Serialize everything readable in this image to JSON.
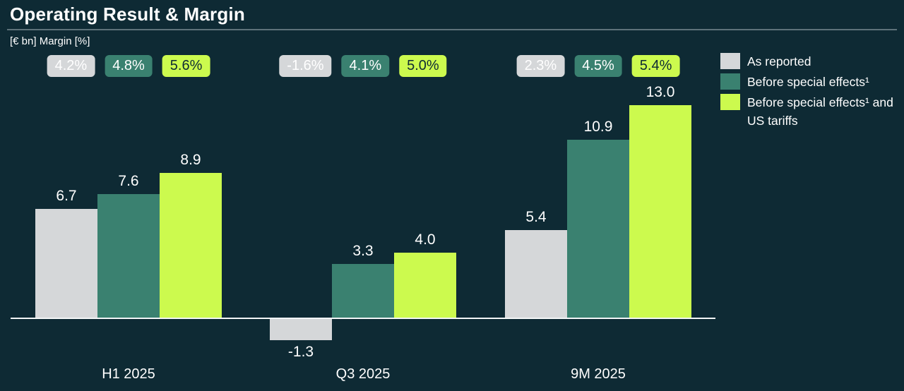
{
  "title": "Operating Result & Margin",
  "subtitle": "[€ bn] Margin [%]",
  "colors": {
    "background": "#0e2a34",
    "title_text": "#ffffff",
    "title_rule": "#5e727a",
    "axis_line": "#f2f5f6",
    "as_reported": "#d5d7d9",
    "before_special_effects": "#3a8170",
    "before_special_effects_and_us_tariffs": "#ccfa4e",
    "badge_text_light": "#ffffff",
    "badge_text_dark": "#0e2a34",
    "value_label_text": "#ffffff"
  },
  "legend": [
    {
      "label": "As reported",
      "color": "#d5d7d9"
    },
    {
      "label": "Before special effects¹",
      "color": "#3a8170"
    },
    {
      "label": "Before special effects¹ and US tariffs",
      "color": "#ccfa4e"
    }
  ],
  "chart_data": {
    "type": "bar",
    "title": "Operating Result & Margin",
    "unit": "€ bn",
    "categories": [
      "H1 2025",
      "Q3 2025",
      "9M 2025"
    ],
    "series": [
      {
        "name": "As reported",
        "color": "#d5d7d9",
        "badge_text_color": "#ffffff",
        "values": [
          6.7,
          -1.3,
          5.4
        ],
        "value_labels": [
          "6.7",
          "-1.3",
          "5.4"
        ],
        "margins": [
          "4.2%",
          "-1.6%",
          "2.3%"
        ]
      },
      {
        "name": "Before special effects¹",
        "color": "#3a8170",
        "badge_text_color": "#ffffff",
        "values": [
          7.6,
          3.3,
          10.9
        ],
        "value_labels": [
          "7.6",
          "3.3",
          "10.9"
        ],
        "margins": [
          "4.8%",
          "4.1%",
          "4.5%"
        ]
      },
      {
        "name": "Before special effects¹ and US tariffs",
        "color": "#ccfa4e",
        "badge_text_color": "#0e2a34",
        "values": [
          8.9,
          4.0,
          13.0
        ],
        "value_labels": [
          "8.9",
          "4.0",
          "13.0"
        ],
        "margins": [
          "5.6%",
          "5.0%",
          "5.4%"
        ]
      }
    ],
    "baseline": 0,
    "ylim": [
      -2,
      14
    ],
    "grid": false,
    "legend_position": "right"
  }
}
